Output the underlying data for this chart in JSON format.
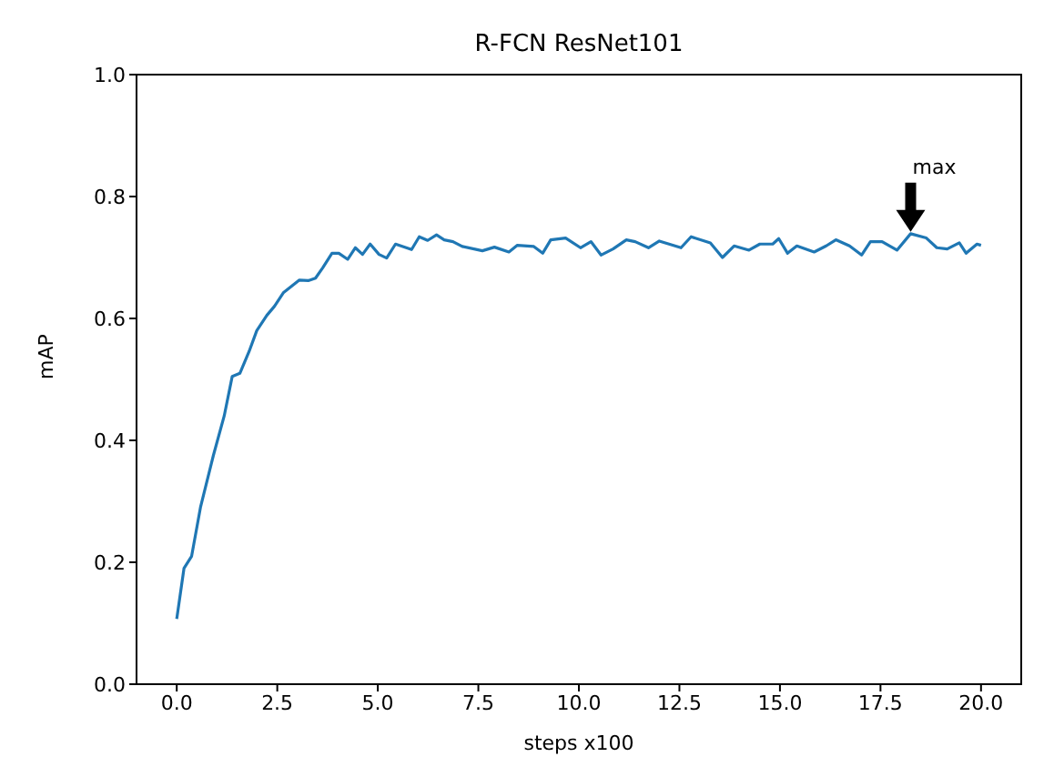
{
  "chart_data": {
    "type": "line",
    "title": "R-FCN ResNet101",
    "xlabel": "steps x100",
    "ylabel": "mAP",
    "x": [
      0,
      0.18,
      0.37,
      0.59,
      0.91,
      1.18,
      1.38,
      1.57,
      1.8,
      1.99,
      2.24,
      2.43,
      2.65,
      3.05,
      3.27,
      3.45,
      3.63,
      3.86,
      4.03,
      4.25,
      4.44,
      4.62,
      4.81,
      5.03,
      5.22,
      5.44,
      5.84,
      6.03,
      6.24,
      6.46,
      6.65,
      6.87,
      7.1,
      7.6,
      7.9,
      8.26,
      8.47,
      8.88,
      9.1,
      9.3,
      9.67,
      10.04,
      10.3,
      10.55,
      10.85,
      11.18,
      11.4,
      11.73,
      12.0,
      12.54,
      12.79,
      13.27,
      13.57,
      13.86,
      14.23,
      14.5,
      14.82,
      14.97,
      15.19,
      15.42,
      15.85,
      16.15,
      16.39,
      16.73,
      17.03,
      17.25,
      17.54,
      17.91,
      18.25,
      18.64,
      18.9,
      19.16,
      19.46,
      19.63,
      19.9,
      20.0
    ],
    "series": [
      {
        "color": "#1f77b4",
        "values": [
          0.107,
          0.19,
          0.21,
          0.29,
          0.375,
          0.44,
          0.505,
          0.51,
          0.546,
          0.58,
          0.605,
          0.62,
          0.642,
          0.663,
          0.662,
          0.666,
          0.683,
          0.707,
          0.707,
          0.697,
          0.716,
          0.705,
          0.722,
          0.705,
          0.699,
          0.722,
          0.713,
          0.734,
          0.728,
          0.737,
          0.729,
          0.726,
          0.718,
          0.711,
          0.717,
          0.709,
          0.72,
          0.718,
          0.707,
          0.729,
          0.732,
          0.716,
          0.726,
          0.704,
          0.714,
          0.729,
          0.726,
          0.716,
          0.727,
          0.716,
          0.734,
          0.724,
          0.7,
          0.719,
          0.712,
          0.722,
          0.722,
          0.731,
          0.707,
          0.719,
          0.709,
          0.719,
          0.729,
          0.719,
          0.704,
          0.726,
          0.726,
          0.712,
          0.739,
          0.732,
          0.716,
          0.714,
          0.724,
          0.707,
          0.722,
          0.72
        ]
      }
    ],
    "xlim": [
      -1,
      21
    ],
    "xticks": [
      {
        "value": 0,
        "label": "0.0"
      },
      {
        "value": 2.5,
        "label": "2.5"
      },
      {
        "value": 5,
        "label": "5.0"
      },
      {
        "value": 7.5,
        "label": "7.5"
      },
      {
        "value": 10,
        "label": "10.0"
      },
      {
        "value": 12.5,
        "label": "12.5"
      },
      {
        "value": 15,
        "label": "15.0"
      },
      {
        "value": 17.5,
        "label": "17.5"
      },
      {
        "value": 20,
        "label": "20.0"
      }
    ],
    "ylim": [
      0,
      1
    ],
    "yticks": [
      {
        "value": 0,
        "label": "0.0"
      },
      {
        "value": 0.2,
        "label": "0.2"
      },
      {
        "value": 0.4,
        "label": "0.4"
      },
      {
        "value": 0.6,
        "label": "0.6"
      },
      {
        "value": 0.8,
        "label": "0.8"
      },
      {
        "value": 1,
        "label": "1.0"
      }
    ],
    "annotations": [
      {
        "text": "max",
        "x": 18.25,
        "y": 0.739
      }
    ],
    "grid": false,
    "marker": "none",
    "line_style": "solid"
  }
}
